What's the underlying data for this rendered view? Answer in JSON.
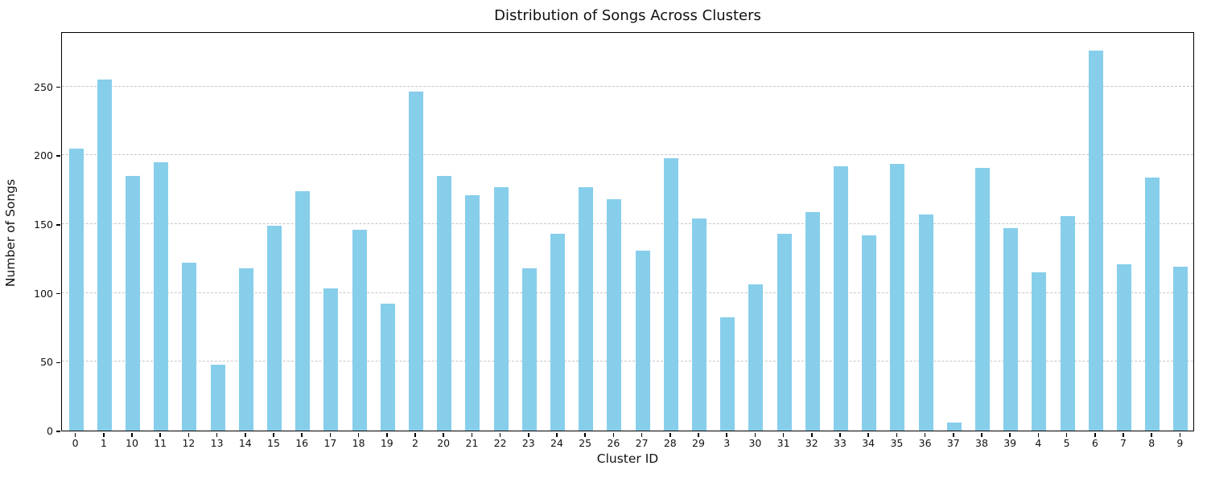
{
  "chart_data": {
    "type": "bar",
    "title": "Distribution of Songs Across Clusters",
    "xlabel": "Cluster ID",
    "ylabel": "Number of Songs",
    "categories": [
      "0",
      "1",
      "10",
      "11",
      "12",
      "13",
      "14",
      "15",
      "16",
      "17",
      "18",
      "19",
      "2",
      "20",
      "21",
      "22",
      "23",
      "24",
      "25",
      "26",
      "27",
      "28",
      "29",
      "3",
      "30",
      "31",
      "32",
      "33",
      "34",
      "35",
      "36",
      "37",
      "38",
      "39",
      "4",
      "5",
      "6",
      "7",
      "8",
      "9"
    ],
    "values": [
      205,
      255,
      185,
      195,
      122,
      48,
      118,
      149,
      174,
      103,
      146,
      92,
      246,
      185,
      171,
      177,
      118,
      143,
      177,
      168,
      131,
      198,
      154,
      82,
      106,
      143,
      159,
      192,
      142,
      194,
      157,
      6,
      191,
      147,
      115,
      156,
      276,
      121,
      184,
      119
    ],
    "yticks": [
      0,
      50,
      100,
      150,
      200,
      250
    ],
    "ylim": [
      0,
      290
    ],
    "bar_color": "#87CEEB",
    "grid": "horizontal-dashed",
    "grid_color": "#c6c6c6",
    "legend": "none"
  }
}
